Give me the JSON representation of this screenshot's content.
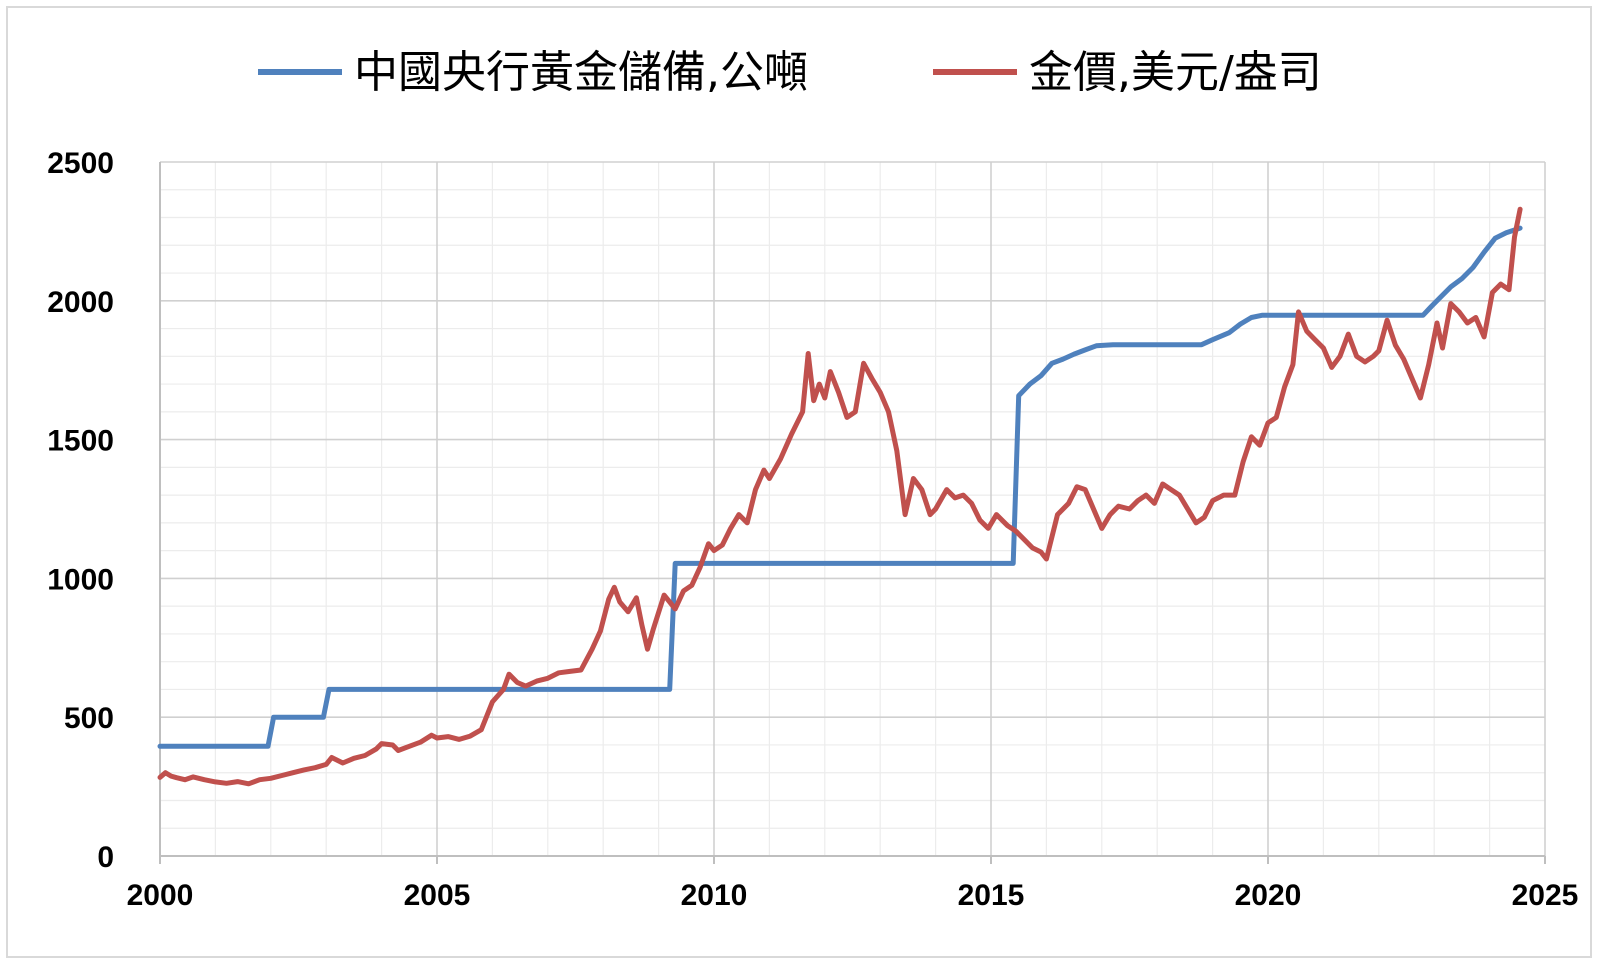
{
  "chart_data": {
    "type": "line",
    "title": "",
    "xlabel": "",
    "ylabel": "",
    "xlim": [
      2000,
      2025
    ],
    "ylim": [
      0,
      2500
    ],
    "x_ticks": [
      "2000",
      "2005",
      "2010",
      "2015",
      "2020",
      "2025"
    ],
    "y_ticks": [
      "0",
      "500",
      "1000",
      "1500",
      "2000",
      "2500"
    ],
    "grid": true,
    "legend": "top",
    "series": [
      {
        "name": "中國央行黃金儲備,公噸",
        "color": "#4f81bd",
        "points": [
          [
            2000.0,
            395
          ],
          [
            2001.95,
            395
          ],
          [
            2002.05,
            500
          ],
          [
            2002.95,
            500
          ],
          [
            2003.05,
            600
          ],
          [
            2009.2,
            600
          ],
          [
            2009.3,
            1054
          ],
          [
            2015.4,
            1054
          ],
          [
            2015.5,
            1658
          ],
          [
            2015.7,
            1700
          ],
          [
            2015.9,
            1730
          ],
          [
            2016.1,
            1775
          ],
          [
            2016.3,
            1790
          ],
          [
            2016.5,
            1808
          ],
          [
            2016.7,
            1823
          ],
          [
            2016.9,
            1838
          ],
          [
            2017.2,
            1842
          ],
          [
            2018.0,
            1842
          ],
          [
            2018.8,
            1842
          ],
          [
            2019.0,
            1860
          ],
          [
            2019.3,
            1885
          ],
          [
            2019.5,
            1916
          ],
          [
            2019.7,
            1940
          ],
          [
            2019.9,
            1948
          ],
          [
            2020.5,
            1948
          ],
          [
            2021.5,
            1948
          ],
          [
            2022.0,
            1948
          ],
          [
            2022.8,
            1948
          ],
          [
            2022.95,
            1980
          ],
          [
            2023.1,
            2010
          ],
          [
            2023.3,
            2050
          ],
          [
            2023.5,
            2080
          ],
          [
            2023.7,
            2120
          ],
          [
            2023.9,
            2175
          ],
          [
            2024.1,
            2225
          ],
          [
            2024.3,
            2245
          ],
          [
            2024.55,
            2262
          ]
        ]
      },
      {
        "name": "金價,美元/盎司",
        "color": "#c0504d",
        "points": [
          [
            2000.0,
            283
          ],
          [
            2000.1,
            300
          ],
          [
            2000.2,
            288
          ],
          [
            2000.3,
            282
          ],
          [
            2000.45,
            275
          ],
          [
            2000.6,
            285
          ],
          [
            2000.8,
            275
          ],
          [
            2001.0,
            267
          ],
          [
            2001.2,
            262
          ],
          [
            2001.4,
            268
          ],
          [
            2001.6,
            260
          ],
          [
            2001.8,
            275
          ],
          [
            2002.0,
            280
          ],
          [
            2002.2,
            290
          ],
          [
            2002.4,
            300
          ],
          [
            2002.6,
            310
          ],
          [
            2002.8,
            318
          ],
          [
            2003.0,
            330
          ],
          [
            2003.1,
            355
          ],
          [
            2003.3,
            335
          ],
          [
            2003.5,
            352
          ],
          [
            2003.7,
            362
          ],
          [
            2003.9,
            385
          ],
          [
            2004.0,
            405
          ],
          [
            2004.2,
            400
          ],
          [
            2004.3,
            380
          ],
          [
            2004.5,
            395
          ],
          [
            2004.7,
            410
          ],
          [
            2004.9,
            435
          ],
          [
            2005.0,
            425
          ],
          [
            2005.2,
            430
          ],
          [
            2005.4,
            420
          ],
          [
            2005.6,
            432
          ],
          [
            2005.8,
            455
          ],
          [
            2006.0,
            555
          ],
          [
            2006.2,
            600
          ],
          [
            2006.3,
            655
          ],
          [
            2006.45,
            625
          ],
          [
            2006.6,
            612
          ],
          [
            2006.8,
            630
          ],
          [
            2007.0,
            640
          ],
          [
            2007.2,
            660
          ],
          [
            2007.4,
            665
          ],
          [
            2007.6,
            670
          ],
          [
            2007.8,
            745
          ],
          [
            2007.95,
            810
          ],
          [
            2008.1,
            925
          ],
          [
            2008.2,
            968
          ],
          [
            2008.3,
            915
          ],
          [
            2008.45,
            880
          ],
          [
            2008.6,
            930
          ],
          [
            2008.7,
            830
          ],
          [
            2008.8,
            745
          ],
          [
            2008.9,
            815
          ],
          [
            2009.1,
            940
          ],
          [
            2009.2,
            915
          ],
          [
            2009.3,
            890
          ],
          [
            2009.45,
            955
          ],
          [
            2009.6,
            975
          ],
          [
            2009.75,
            1040
          ],
          [
            2009.9,
            1125
          ],
          [
            2010.0,
            1100
          ],
          [
            2010.15,
            1120
          ],
          [
            2010.3,
            1180
          ],
          [
            2010.45,
            1230
          ],
          [
            2010.6,
            1200
          ],
          [
            2010.75,
            1320
          ],
          [
            2010.9,
            1390
          ],
          [
            2011.0,
            1360
          ],
          [
            2011.2,
            1430
          ],
          [
            2011.4,
            1520
          ],
          [
            2011.6,
            1600
          ],
          [
            2011.7,
            1810
          ],
          [
            2011.8,
            1640
          ],
          [
            2011.9,
            1700
          ],
          [
            2012.0,
            1650
          ],
          [
            2012.1,
            1745
          ],
          [
            2012.25,
            1670
          ],
          [
            2012.4,
            1580
          ],
          [
            2012.55,
            1600
          ],
          [
            2012.7,
            1775
          ],
          [
            2012.85,
            1720
          ],
          [
            2013.0,
            1670
          ],
          [
            2013.15,
            1600
          ],
          [
            2013.3,
            1460
          ],
          [
            2013.45,
            1230
          ],
          [
            2013.6,
            1360
          ],
          [
            2013.75,
            1320
          ],
          [
            2013.9,
            1230
          ],
          [
            2014.0,
            1250
          ],
          [
            2014.2,
            1320
          ],
          [
            2014.35,
            1290
          ],
          [
            2014.5,
            1300
          ],
          [
            2014.65,
            1270
          ],
          [
            2014.8,
            1210
          ],
          [
            2014.95,
            1180
          ],
          [
            2015.1,
            1230
          ],
          [
            2015.3,
            1190
          ],
          [
            2015.45,
            1170
          ],
          [
            2015.6,
            1140
          ],
          [
            2015.75,
            1110
          ],
          [
            2015.9,
            1095
          ],
          [
            2016.0,
            1070
          ],
          [
            2016.2,
            1230
          ],
          [
            2016.4,
            1270
          ],
          [
            2016.55,
            1330
          ],
          [
            2016.7,
            1320
          ],
          [
            2016.85,
            1250
          ],
          [
            2017.0,
            1180
          ],
          [
            2017.15,
            1230
          ],
          [
            2017.3,
            1260
          ],
          [
            2017.5,
            1250
          ],
          [
            2017.65,
            1280
          ],
          [
            2017.8,
            1300
          ],
          [
            2017.95,
            1270
          ],
          [
            2018.1,
            1340
          ],
          [
            2018.25,
            1320
          ],
          [
            2018.4,
            1300
          ],
          [
            2018.55,
            1250
          ],
          [
            2018.7,
            1200
          ],
          [
            2018.85,
            1220
          ],
          [
            2019.0,
            1280
          ],
          [
            2019.2,
            1300
          ],
          [
            2019.4,
            1300
          ],
          [
            2019.55,
            1420
          ],
          [
            2019.7,
            1510
          ],
          [
            2019.85,
            1480
          ],
          [
            2020.0,
            1560
          ],
          [
            2020.15,
            1580
          ],
          [
            2020.3,
            1690
          ],
          [
            2020.45,
            1770
          ],
          [
            2020.55,
            1960
          ],
          [
            2020.7,
            1890
          ],
          [
            2020.85,
            1860
          ],
          [
            2021.0,
            1830
          ],
          [
            2021.15,
            1760
          ],
          [
            2021.3,
            1800
          ],
          [
            2021.45,
            1880
          ],
          [
            2021.6,
            1800
          ],
          [
            2021.75,
            1780
          ],
          [
            2021.9,
            1800
          ],
          [
            2022.0,
            1820
          ],
          [
            2022.15,
            1930
          ],
          [
            2022.3,
            1840
          ],
          [
            2022.45,
            1790
          ],
          [
            2022.6,
            1720
          ],
          [
            2022.75,
            1650
          ],
          [
            2022.9,
            1770
          ],
          [
            2023.05,
            1920
          ],
          [
            2023.15,
            1830
          ],
          [
            2023.3,
            1990
          ],
          [
            2023.45,
            1960
          ],
          [
            2023.6,
            1920
          ],
          [
            2023.75,
            1940
          ],
          [
            2023.9,
            1870
          ],
          [
            2024.05,
            2030
          ],
          [
            2024.2,
            2060
          ],
          [
            2024.35,
            2040
          ],
          [
            2024.45,
            2230
          ],
          [
            2024.55,
            2330
          ]
        ]
      }
    ]
  }
}
